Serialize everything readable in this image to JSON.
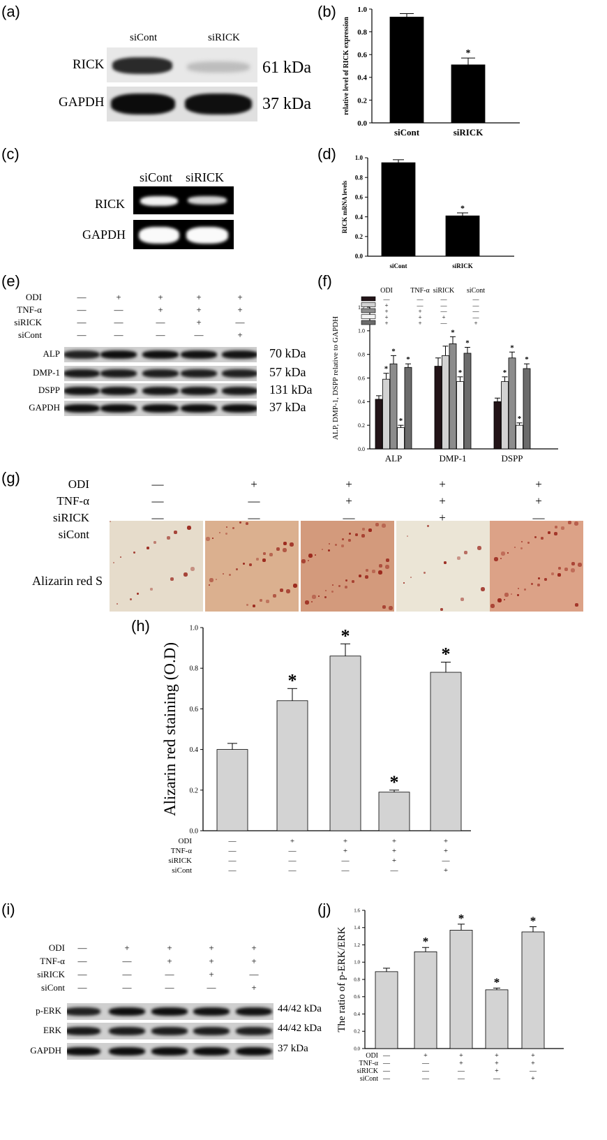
{
  "panels": {
    "a": {
      "label": "(a)",
      "lanes": [
        "siCont",
        "siRICK"
      ],
      "rows": [
        {
          "name": "RICK",
          "kda": "61 kDa"
        },
        {
          "name": "GAPDH",
          "kda": "37 kDa"
        }
      ]
    },
    "b": {
      "label": "(b)"
    },
    "c": {
      "label": "(c)",
      "lanes": [
        "siCont",
        "siRICK"
      ],
      "rows": [
        "RICK",
        "GAPDH"
      ]
    },
    "d": {
      "label": "(d)"
    },
    "e": {
      "label": "(e)",
      "conditions": [
        {
          "name": "ODI",
          "marks": [
            "—",
            "+",
            "+",
            "+",
            "+"
          ]
        },
        {
          "name": "TNF-α",
          "marks": [
            "—",
            "—",
            "+",
            "+",
            "+"
          ]
        },
        {
          "name": "siRICK",
          "marks": [
            "—",
            "—",
            "—",
            "+",
            "—"
          ]
        },
        {
          "name": "siCont",
          "marks": [
            "—",
            "—",
            "—",
            "—",
            "+"
          ]
        }
      ],
      "rows": [
        {
          "name": "ALP",
          "kda": "70 kDa"
        },
        {
          "name": "DMP-1",
          "kda": "57 kDa"
        },
        {
          "name": "DSPP",
          "kda": "131 kDa"
        },
        {
          "name": "GAPDH",
          "kda": "37 kDa"
        }
      ]
    },
    "f": {
      "label": "(f)"
    },
    "g": {
      "label": "(g)",
      "conditions": [
        {
          "name": "ODI",
          "marks": [
            "—",
            "+",
            "+",
            "+",
            "+"
          ]
        },
        {
          "name": "TNF-α",
          "marks": [
            "—",
            "—",
            "+",
            "+",
            "+"
          ]
        },
        {
          "name": "siRICK",
          "marks": [
            "—",
            "—",
            "—",
            "+",
            "—"
          ]
        },
        {
          "name": "siCont",
          "marks": [
            "—",
            "—",
            "—",
            "—",
            "+"
          ]
        }
      ],
      "row_label": "Alizarin red S"
    },
    "h": {
      "label": "(h)"
    },
    "i": {
      "label": "(i)",
      "conditions": [
        {
          "name": "ODI",
          "marks": [
            "—",
            "+",
            "+",
            "+",
            "+"
          ]
        },
        {
          "name": "TNF-α",
          "marks": [
            "—",
            "—",
            "+",
            "+",
            "+"
          ]
        },
        {
          "name": "siRICK",
          "marks": [
            "—",
            "—",
            "—",
            "+",
            "—"
          ]
        },
        {
          "name": "siCont",
          "marks": [
            "—",
            "—",
            "—",
            "—",
            "+"
          ]
        }
      ],
      "rows": [
        {
          "name": "p-ERK",
          "kda": "44/42 kDa"
        },
        {
          "name": "ERK",
          "kda": "44/42 kDa"
        },
        {
          "name": "GAPDH",
          "kda": "37 kDa"
        }
      ]
    },
    "j": {
      "label": "(j)"
    }
  },
  "chart_data": [
    {
      "id": "b",
      "type": "bar",
      "categories": [
        "siCont",
        "siRICK"
      ],
      "values": [
        0.93,
        0.51
      ],
      "errors": [
        0.03,
        0.06
      ],
      "sig": [
        "",
        "*"
      ],
      "ylabel": "relative level of RICK expression",
      "ylim": [
        0,
        1.0
      ],
      "yticks": [
        "0.0",
        "0.2",
        "0.4",
        "0.6",
        "0.8",
        "1.0"
      ],
      "color": "#000000"
    },
    {
      "id": "d",
      "type": "bar",
      "categories": [
        "siCont",
        "siRICK"
      ],
      "values": [
        0.95,
        0.41
      ],
      "errors": [
        0.03,
        0.03
      ],
      "sig": [
        "",
        "*"
      ],
      "ylabel": "RICK mRNA levels",
      "ylim": [
        0,
        1.0
      ],
      "yticks": [
        "0.0",
        "0.2",
        "0.4",
        "0.6",
        "0.8",
        "1.0"
      ],
      "color": "#000000"
    },
    {
      "id": "f",
      "type": "bar",
      "categories": [
        "ALP",
        "DMP-1",
        "DSPP"
      ],
      "series": [
        {
          "values": [
            0.42,
            0.7,
            0.4
          ],
          "errors": [
            0.03,
            0.07,
            0.03
          ],
          "sig": [
            "",
            "",
            ""
          ],
          "color": "#231418"
        },
        {
          "values": [
            0.59,
            0.79,
            0.57
          ],
          "errors": [
            0.05,
            0.08,
            0.04
          ],
          "sig": [
            "*",
            "",
            "*"
          ],
          "color": "#d2d2d2"
        },
        {
          "values": [
            0.72,
            0.89,
            0.77
          ],
          "errors": [
            0.07,
            0.06,
            0.05
          ],
          "sig": [
            "*",
            "*",
            "*"
          ],
          "color": "#8c8c8c"
        },
        {
          "values": [
            0.18,
            0.57,
            0.2
          ],
          "errors": [
            0.02,
            0.04,
            0.02
          ],
          "sig": [
            "*",
            "*",
            "*"
          ],
          "color": "#f2f2f2"
        },
        {
          "values": [
            0.69,
            0.81,
            0.68
          ],
          "errors": [
            0.03,
            0.05,
            0.04
          ],
          "sig": [
            "*",
            "*",
            "*"
          ],
          "color": "#6b6b6b"
        }
      ],
      "legend_header": [
        "ODI",
        "TNF-α",
        "siRICK",
        "siCont"
      ],
      "legend_marks": [
        [
          "—",
          "—",
          "—",
          "—"
        ],
        [
          "+",
          "—",
          "—",
          "—"
        ],
        [
          "+",
          "+",
          "—",
          "—"
        ],
        [
          "+",
          "+",
          "+",
          "—"
        ],
        [
          "+",
          "+",
          "—",
          "+"
        ]
      ],
      "ylabel": "ALP, DMP-1, DSPP relative to GAPDH",
      "ylim": [
        0,
        1.2
      ],
      "yticks": [
        "0.0",
        "0.2",
        "0.4",
        "0.6",
        "0.8",
        "1.0",
        "1.2"
      ]
    },
    {
      "id": "h",
      "type": "bar",
      "values": [
        0.4,
        0.64,
        0.86,
        0.19,
        0.78
      ],
      "errors": [
        0.03,
        0.06,
        0.06,
        0.01,
        0.05
      ],
      "sig": [
        "",
        "*",
        "*",
        "*",
        "*"
      ],
      "ylabel": "Alizarin red staining (O.D)",
      "ylim": [
        0,
        1.0
      ],
      "yticks": [
        "0.0",
        "0.2",
        "0.4",
        "0.6",
        "0.8",
        "1.0"
      ],
      "color": "#d3d3d3",
      "condition_names": [
        "ODI",
        "TNF-α",
        "siRICK",
        "siCont"
      ],
      "condition_marks": [
        [
          "—",
          "+",
          "+",
          "+",
          "+"
        ],
        [
          "—",
          "—",
          "+",
          "+",
          "+"
        ],
        [
          "—",
          "—",
          "—",
          "+",
          "—"
        ],
        [
          "—",
          "—",
          "—",
          "—",
          "+"
        ]
      ]
    },
    {
      "id": "j",
      "type": "bar",
      "values": [
        0.89,
        1.12,
        1.37,
        0.68,
        1.35
      ],
      "errors": [
        0.04,
        0.05,
        0.07,
        0.02,
        0.06
      ],
      "sig": [
        "",
        "*",
        "*",
        "*",
        "*"
      ],
      "ylabel": "The ratio of p-ERK/ERK",
      "ylim": [
        0,
        1.6
      ],
      "yticks": [
        "0.0",
        "0.2",
        "0.4",
        "0.6",
        "0.8",
        "1.0",
        "1.2",
        "1.4",
        "1.6"
      ],
      "color": "#d3d3d3",
      "condition_names": [
        "ODI",
        "TNF-α",
        "siRICK",
        "siCont"
      ],
      "condition_marks": [
        [
          "—",
          "+",
          "+",
          "+",
          "+"
        ],
        [
          "—",
          "—",
          "+",
          "+",
          "+"
        ],
        [
          "—",
          "—",
          "—",
          "+",
          "—"
        ],
        [
          "—",
          "—",
          "—",
          "—",
          "+"
        ]
      ]
    }
  ]
}
